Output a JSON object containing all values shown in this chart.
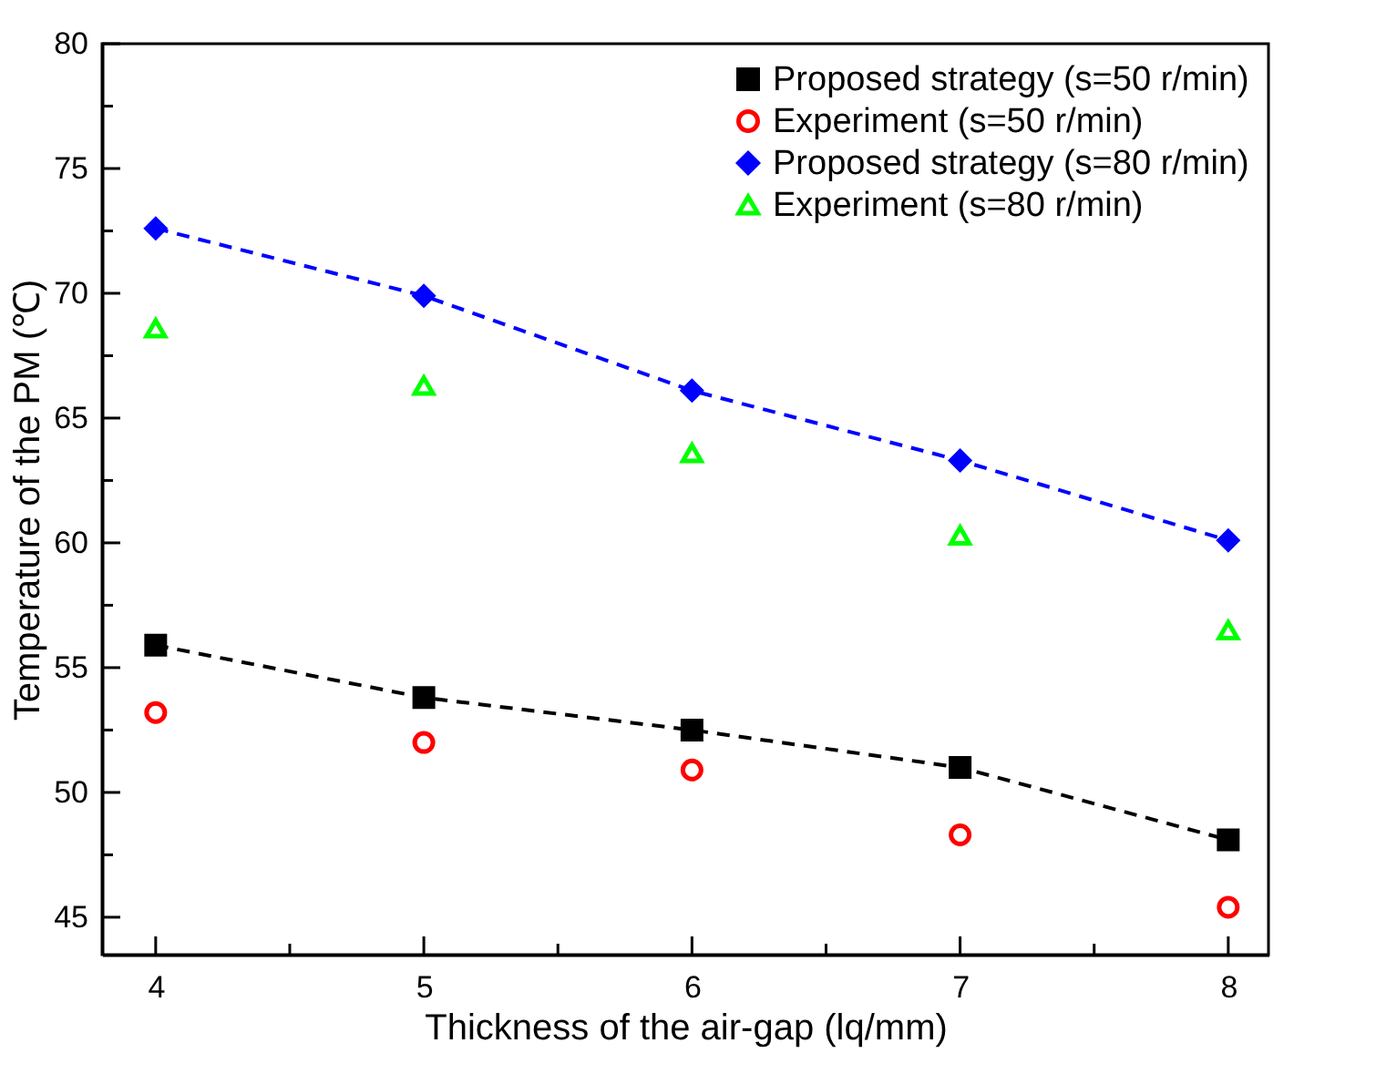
{
  "chart_data": {
    "type": "line",
    "xlabel": "Thickness of the air-gap (lq/mm)",
    "ylabel": "Temperature of the PM (℃)",
    "x": [
      4,
      5,
      6,
      7,
      8
    ],
    "series": [
      {
        "name": "Proposed strategy (s=50 r/min)",
        "color": "#000000",
        "marker": "square",
        "line_style": "dashed",
        "values": [
          55.9,
          53.8,
          52.5,
          51.0,
          48.1
        ]
      },
      {
        "name": "Experiment (s=50 r/min)",
        "type": "scatter",
        "color": "#ff0000",
        "marker": "circle",
        "values": [
          53.2,
          52.0,
          50.9,
          48.3,
          45.4
        ]
      },
      {
        "name": "Proposed strategy (s=80 r/min)",
        "color": "#0000ff",
        "marker": "diamond",
        "line_style": "dashed",
        "values": [
          72.6,
          69.9,
          66.1,
          63.3,
          60.1
        ]
      },
      {
        "name": "Experiment (s=80 r/min)",
        "type": "scatter",
        "color": "#00ff00",
        "marker": "triangle",
        "values": [
          68.6,
          66.3,
          63.6,
          60.3,
          56.5
        ]
      }
    ],
    "xlim": [
      3.8,
      8.15
    ],
    "ylim": [
      43.5,
      80
    ],
    "xticks": [
      4,
      {
        "value": 4.5,
        "label": null
      },
      5,
      {
        "value": 5.5,
        "label": null
      },
      6,
      {
        "value": 6.5,
        "label": null
      },
      7,
      {
        "value": 7.5,
        "label": null
      },
      8
    ],
    "yticks": [
      45,
      {
        "value": 47.5,
        "label": null
      },
      50,
      {
        "value": 52.5,
        "label": null
      },
      55,
      {
        "value": 57.5,
        "label": null
      },
      60,
      {
        "value": 62.5,
        "label": null
      },
      65,
      {
        "value": 67.5,
        "label": null
      },
      70,
      {
        "value": 72.5,
        "label": null
      },
      75,
      {
        "value": 77.5,
        "label": null
      },
      80
    ],
    "grid": false,
    "legend": "top right"
  }
}
